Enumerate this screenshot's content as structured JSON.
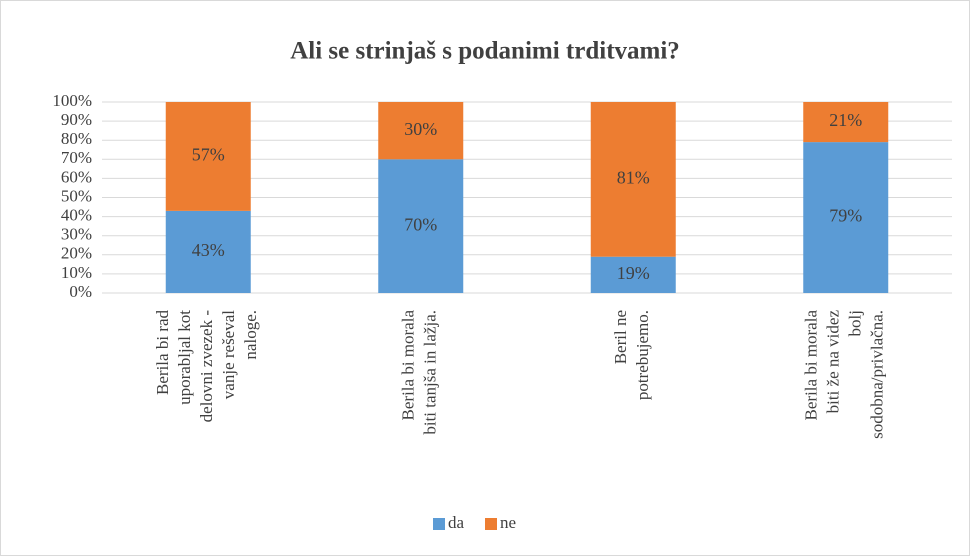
{
  "chart_data": {
    "type": "stacked_bar_100",
    "title": "Ali se strinjaš s podanimi trditvami?",
    "categories": [
      [
        "Berila bi rad",
        "uporabljal kot",
        "delovni zvezek -",
        "vanje reševal",
        "naloge."
      ],
      [
        "Berila bi morala",
        "biti tanjša in lažja."
      ],
      [
        "Beril ne",
        "potrebujemo."
      ],
      [
        "Berila bi morala",
        "biti že na videz",
        "bolj",
        "sodobna/privlačna."
      ]
    ],
    "series": [
      {
        "name": "da",
        "color": "#5b9bd5",
        "values": [
          43,
          70,
          19,
          79
        ],
        "value_labels": [
          "43%",
          "70%",
          "19%",
          "79%"
        ]
      },
      {
        "name": "ne",
        "color": "#ed7d31",
        "values": [
          57,
          30,
          81,
          21
        ],
        "value_labels": [
          "57%",
          "30%",
          "81%",
          "21%"
        ]
      }
    ],
    "ylim": [
      0,
      100
    ],
    "yticks": [
      {
        "value": 0,
        "label": "0%"
      },
      {
        "value": 10,
        "label": "10%"
      },
      {
        "value": 20,
        "label": "20%"
      },
      {
        "value": 30,
        "label": "30%"
      },
      {
        "value": 40,
        "label": "40%"
      },
      {
        "value": 50,
        "label": "50%"
      },
      {
        "value": 60,
        "label": "60%"
      },
      {
        "value": 70,
        "label": "70%"
      },
      {
        "value": 80,
        "label": "80%"
      },
      {
        "value": 90,
        "label": "90%"
      },
      {
        "value": 100,
        "label": "100%"
      }
    ],
    "grid": true,
    "legend": "bottom"
  }
}
